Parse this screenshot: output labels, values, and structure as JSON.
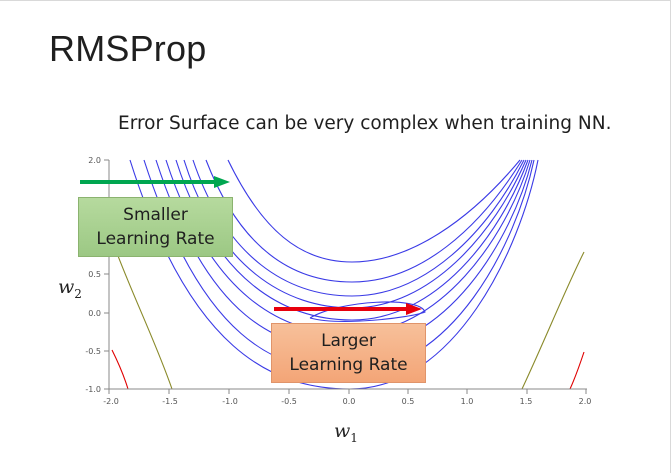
{
  "title": "RMSProp",
  "subtitle": "Error Surface can be very complex when training NN.",
  "axes": {
    "x_label": "w",
    "x_label_sub": "1",
    "y_label": "w",
    "y_label_sub": "2",
    "x_ticks": [
      "-2.0",
      "-1.5",
      "-1.0",
      "-0.5",
      "0.0",
      "0.5",
      "1.0",
      "1.5",
      "2.0"
    ],
    "y_ticks": [
      "2.0",
      "0.5",
      "0.0",
      "-0.5",
      "-1.0"
    ]
  },
  "annotations": {
    "smaller": {
      "line1": "Smaller",
      "line2": "Learning Rate",
      "arrow_color": "#00a650"
    },
    "larger": {
      "line1": "Larger",
      "line2": "Learning Rate",
      "arrow_color": "#e8000d"
    }
  },
  "colors": {
    "contour": "#3a3ae6",
    "contour_outer_left": "#8a8a2a",
    "contour_outer_right": "#e00000"
  }
}
